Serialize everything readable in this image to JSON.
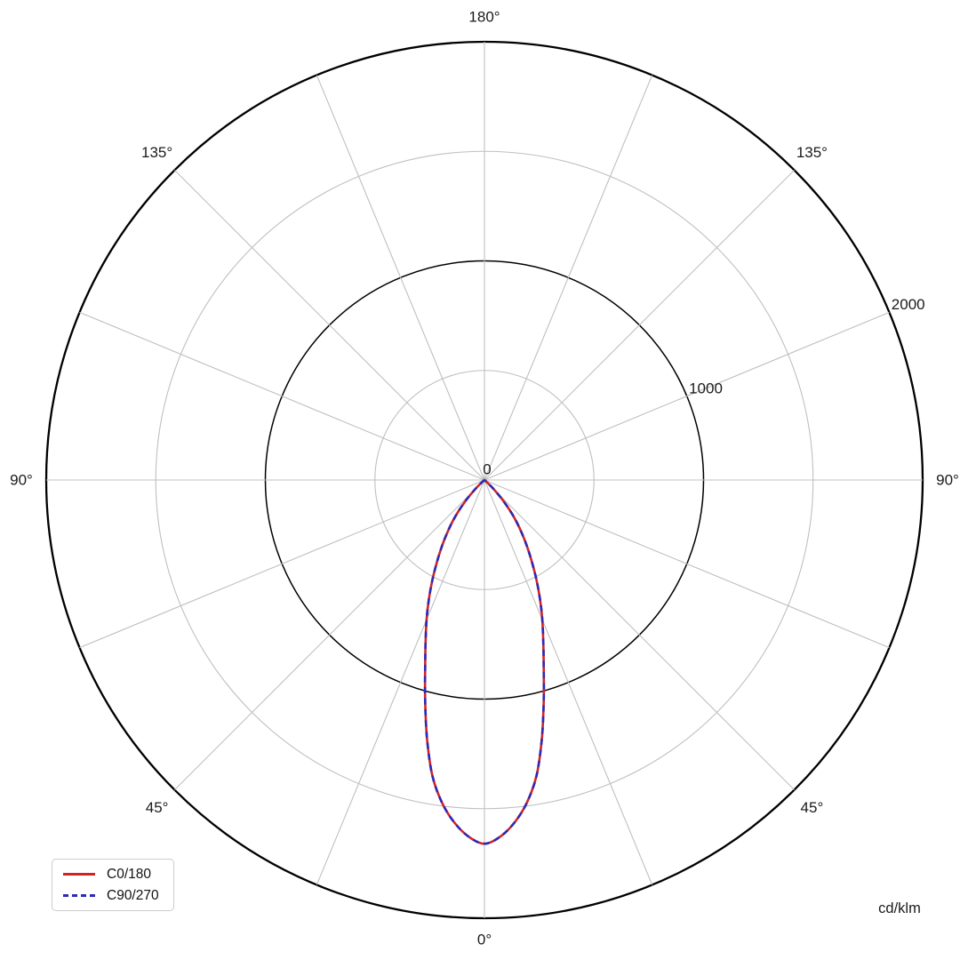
{
  "page": {
    "background": "#ffffff"
  },
  "chart_data": {
    "type": "polar-photometric",
    "title": "",
    "units_label": "cd/klm",
    "angle_convention": "0° at bottom (nadir), 180° at top, angles mirrored left/right",
    "angle_grid_step_deg": 22.5,
    "angle_tick_labels": [
      {
        "label": "0°",
        "gamma": 0,
        "side": "bottom"
      },
      {
        "label": "45°",
        "gamma": 45,
        "side": "left"
      },
      {
        "label": "45°",
        "gamma": 45,
        "side": "right"
      },
      {
        "label": "90°",
        "gamma": 90,
        "side": "left"
      },
      {
        "label": "90°",
        "gamma": 90,
        "side": "right"
      },
      {
        "label": "135°",
        "gamma": 135,
        "side": "left"
      },
      {
        "label": "135°",
        "gamma": 135,
        "side": "right"
      },
      {
        "label": "180°",
        "gamma": 180,
        "side": "top"
      }
    ],
    "radial_axis": {
      "min": 0,
      "max": 2000,
      "minor_rings": [
        500,
        1500
      ],
      "major_rings": [
        1000
      ],
      "outer_ring": 2000,
      "tick_labels": [
        {
          "value": 0,
          "label": "0"
        },
        {
          "value": 1000,
          "label": "1000"
        },
        {
          "value": 2000,
          "label": "2000"
        }
      ],
      "tick_label_angle_deg": 112.5
    },
    "grid_color": "#bfbfbf",
    "axis_color": "#000000",
    "legend_position": "bottom-left",
    "series": [
      {
        "name": "C0/180",
        "color": "#d42222",
        "line_style": "solid",
        "gamma_deg": [
          0,
          2.5,
          5,
          7.5,
          10,
          12.5,
          15,
          17.5,
          20,
          22.5,
          25,
          27.5,
          30,
          32.5,
          35,
          37.5,
          40,
          42.5,
          45,
          47.5,
          50,
          52.5,
          55,
          60,
          90,
          120,
          150,
          180
        ],
        "intensity_cd_per_klm": [
          1660,
          1630,
          1570,
          1485,
          1370,
          1210,
          1045,
          900,
          785,
          690,
          600,
          515,
          435,
          365,
          300,
          240,
          180,
          120,
          65,
          25,
          8,
          2,
          0,
          0,
          0,
          0,
          0,
          0
        ]
      },
      {
        "name": "C90/270",
        "color": "#2a2ab8",
        "line_style": "dashed",
        "gamma_deg": [
          0,
          2.5,
          5,
          7.5,
          10,
          12.5,
          15,
          17.5,
          20,
          22.5,
          25,
          27.5,
          30,
          32.5,
          35,
          37.5,
          40,
          42.5,
          45,
          47.5,
          50,
          52.5,
          55,
          60,
          90,
          120,
          150,
          180
        ],
        "intensity_cd_per_klm": [
          1660,
          1630,
          1570,
          1485,
          1370,
          1210,
          1045,
          900,
          785,
          690,
          600,
          515,
          435,
          365,
          300,
          240,
          180,
          120,
          65,
          25,
          8,
          2,
          0,
          0,
          0,
          0,
          0,
          0
        ]
      }
    ]
  }
}
